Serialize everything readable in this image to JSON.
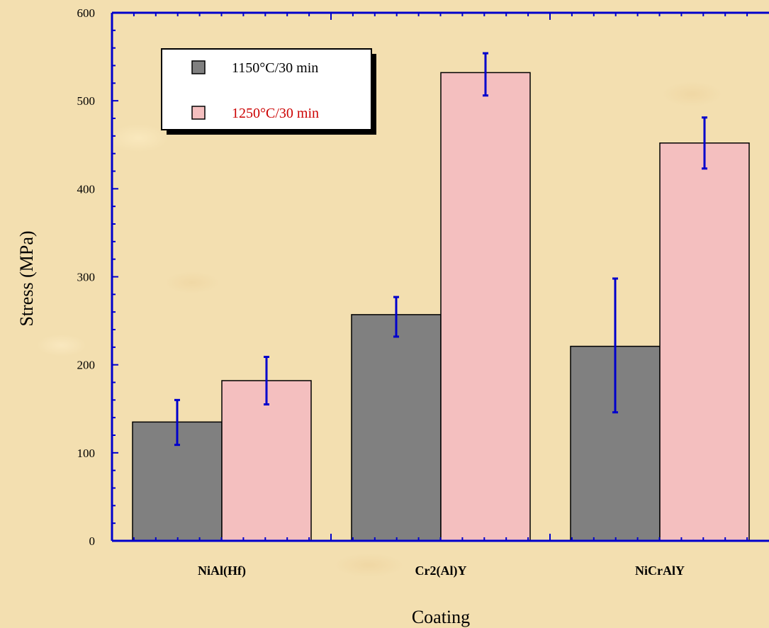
{
  "chart_data": {
    "type": "bar",
    "title": "",
    "xlabel": "Coating",
    "ylabel": "Stress (MPa)",
    "categories": [
      "NiAl(Hf)",
      "Cr2(Al)Y",
      "NiCrAlY"
    ],
    "ylim": [
      0,
      600
    ],
    "yticks": [
      "0",
      "100",
      "200",
      "300",
      "400",
      "500",
      "600"
    ],
    "grid": false,
    "legend_position": "top-left",
    "series": [
      {
        "name": "1150°C/30 min",
        "color": "#808080",
        "label_color": "#000000",
        "values": [
          135,
          257,
          221
        ],
        "error_low": [
          109,
          232,
          146
        ],
        "error_high": [
          160,
          277,
          298
        ]
      },
      {
        "name": "1250°C/30 min",
        "color": "#f4bfbf",
        "label_color": "#cc0000",
        "values": [
          182,
          532,
          452
        ],
        "error_low": [
          155,
          506,
          423
        ],
        "error_high": [
          209,
          554,
          481
        ]
      }
    ],
    "axis_color": "#0000cc",
    "errorbar_color": "#0000cc"
  }
}
